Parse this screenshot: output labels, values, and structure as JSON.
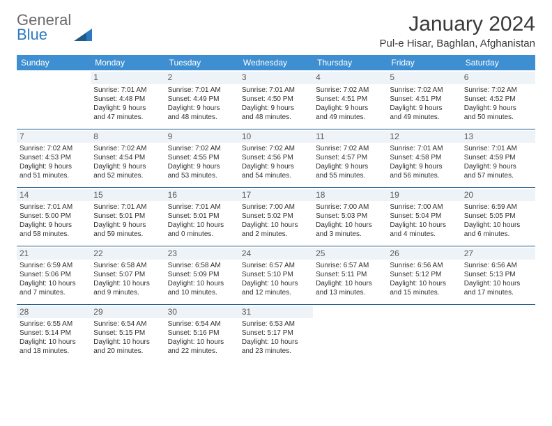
{
  "logo": {
    "word1": "General",
    "word2": "Blue"
  },
  "title": "January 2024",
  "location": "Pul-e Hisar, Baghlan, Afghanistan",
  "colors": {
    "header_bg": "#3d8fd1",
    "header_text": "#ffffff",
    "row_border": "#1f5a8a",
    "daynum_bg": "#eef3f7",
    "daynum_text": "#5a5a5a",
    "body_text": "#2f2f2f",
    "logo_gray": "#6b6b6b",
    "logo_blue": "#2b79c2"
  },
  "typography": {
    "title_fontsize": 30,
    "location_fontsize": 15,
    "weekday_fontsize": 12,
    "daynum_fontsize": 12,
    "cell_fontsize": 10
  },
  "weekdays": [
    "Sunday",
    "Monday",
    "Tuesday",
    "Wednesday",
    "Thursday",
    "Friday",
    "Saturday"
  ],
  "weeks": [
    [
      null,
      {
        "n": "1",
        "sr": "7:01 AM",
        "ss": "4:48 PM",
        "dl1": "9 hours",
        "dl2": "and 47 minutes."
      },
      {
        "n": "2",
        "sr": "7:01 AM",
        "ss": "4:49 PM",
        "dl1": "9 hours",
        "dl2": "and 48 minutes."
      },
      {
        "n": "3",
        "sr": "7:01 AM",
        "ss": "4:50 PM",
        "dl1": "9 hours",
        "dl2": "and 48 minutes."
      },
      {
        "n": "4",
        "sr": "7:02 AM",
        "ss": "4:51 PM",
        "dl1": "9 hours",
        "dl2": "and 49 minutes."
      },
      {
        "n": "5",
        "sr": "7:02 AM",
        "ss": "4:51 PM",
        "dl1": "9 hours",
        "dl2": "and 49 minutes."
      },
      {
        "n": "6",
        "sr": "7:02 AM",
        "ss": "4:52 PM",
        "dl1": "9 hours",
        "dl2": "and 50 minutes."
      }
    ],
    [
      {
        "n": "7",
        "sr": "7:02 AM",
        "ss": "4:53 PM",
        "dl1": "9 hours",
        "dl2": "and 51 minutes."
      },
      {
        "n": "8",
        "sr": "7:02 AM",
        "ss": "4:54 PM",
        "dl1": "9 hours",
        "dl2": "and 52 minutes."
      },
      {
        "n": "9",
        "sr": "7:02 AM",
        "ss": "4:55 PM",
        "dl1": "9 hours",
        "dl2": "and 53 minutes."
      },
      {
        "n": "10",
        "sr": "7:02 AM",
        "ss": "4:56 PM",
        "dl1": "9 hours",
        "dl2": "and 54 minutes."
      },
      {
        "n": "11",
        "sr": "7:02 AM",
        "ss": "4:57 PM",
        "dl1": "9 hours",
        "dl2": "and 55 minutes."
      },
      {
        "n": "12",
        "sr": "7:01 AM",
        "ss": "4:58 PM",
        "dl1": "9 hours",
        "dl2": "and 56 minutes."
      },
      {
        "n": "13",
        "sr": "7:01 AM",
        "ss": "4:59 PM",
        "dl1": "9 hours",
        "dl2": "and 57 minutes."
      }
    ],
    [
      {
        "n": "14",
        "sr": "7:01 AM",
        "ss": "5:00 PM",
        "dl1": "9 hours",
        "dl2": "and 58 minutes."
      },
      {
        "n": "15",
        "sr": "7:01 AM",
        "ss": "5:01 PM",
        "dl1": "9 hours",
        "dl2": "and 59 minutes."
      },
      {
        "n": "16",
        "sr": "7:01 AM",
        "ss": "5:01 PM",
        "dl1": "10 hours",
        "dl2": "and 0 minutes."
      },
      {
        "n": "17",
        "sr": "7:00 AM",
        "ss": "5:02 PM",
        "dl1": "10 hours",
        "dl2": "and 2 minutes."
      },
      {
        "n": "18",
        "sr": "7:00 AM",
        "ss": "5:03 PM",
        "dl1": "10 hours",
        "dl2": "and 3 minutes."
      },
      {
        "n": "19",
        "sr": "7:00 AM",
        "ss": "5:04 PM",
        "dl1": "10 hours",
        "dl2": "and 4 minutes."
      },
      {
        "n": "20",
        "sr": "6:59 AM",
        "ss": "5:05 PM",
        "dl1": "10 hours",
        "dl2": "and 6 minutes."
      }
    ],
    [
      {
        "n": "21",
        "sr": "6:59 AM",
        "ss": "5:06 PM",
        "dl1": "10 hours",
        "dl2": "and 7 minutes."
      },
      {
        "n": "22",
        "sr": "6:58 AM",
        "ss": "5:07 PM",
        "dl1": "10 hours",
        "dl2": "and 9 minutes."
      },
      {
        "n": "23",
        "sr": "6:58 AM",
        "ss": "5:09 PM",
        "dl1": "10 hours",
        "dl2": "and 10 minutes."
      },
      {
        "n": "24",
        "sr": "6:57 AM",
        "ss": "5:10 PM",
        "dl1": "10 hours",
        "dl2": "and 12 minutes."
      },
      {
        "n": "25",
        "sr": "6:57 AM",
        "ss": "5:11 PM",
        "dl1": "10 hours",
        "dl2": "and 13 minutes."
      },
      {
        "n": "26",
        "sr": "6:56 AM",
        "ss": "5:12 PM",
        "dl1": "10 hours",
        "dl2": "and 15 minutes."
      },
      {
        "n": "27",
        "sr": "6:56 AM",
        "ss": "5:13 PM",
        "dl1": "10 hours",
        "dl2": "and 17 minutes."
      }
    ],
    [
      {
        "n": "28",
        "sr": "6:55 AM",
        "ss": "5:14 PM",
        "dl1": "10 hours",
        "dl2": "and 18 minutes."
      },
      {
        "n": "29",
        "sr": "6:54 AM",
        "ss": "5:15 PM",
        "dl1": "10 hours",
        "dl2": "and 20 minutes."
      },
      {
        "n": "30",
        "sr": "6:54 AM",
        "ss": "5:16 PM",
        "dl1": "10 hours",
        "dl2": "and 22 minutes."
      },
      {
        "n": "31",
        "sr": "6:53 AM",
        "ss": "5:17 PM",
        "dl1": "10 hours",
        "dl2": "and 23 minutes."
      },
      null,
      null,
      null
    ]
  ],
  "labels": {
    "sunrise": "Sunrise:",
    "sunset": "Sunset:",
    "daylight": "Daylight:"
  }
}
